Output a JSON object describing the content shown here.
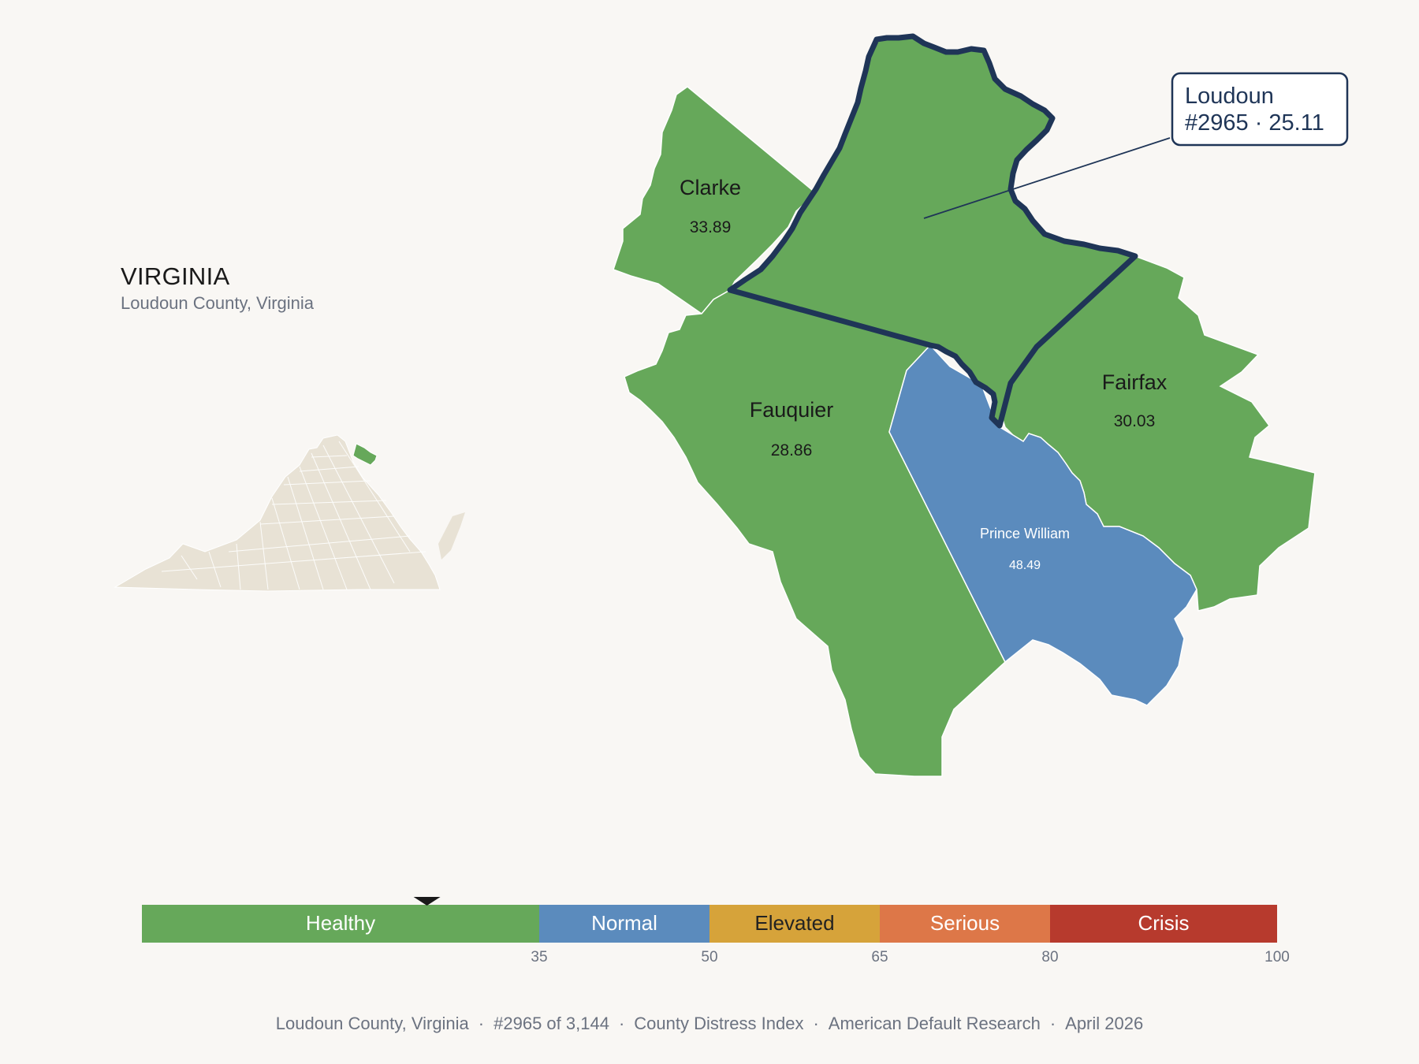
{
  "header": {
    "state_name": "VIRGINIA",
    "subtitle": "Loudoun County, Virginia"
  },
  "colors": {
    "background": "#f9f7f4",
    "healthy": "#66a85a",
    "normal": "#5b8bbd",
    "elevated": "#d6a33a",
    "serious": "#dd7748",
    "crisis": "#b73a2d",
    "highlight_border": "#1f3557",
    "state_base": "#e8e2d5"
  },
  "map": {
    "focus_county": {
      "name": "Loudoun",
      "rank_label": "#2965 · 25.11",
      "score": 25.11,
      "category": "Healthy"
    },
    "neighbors": [
      {
        "name": "Clarke",
        "value": "33.89",
        "category": "Healthy"
      },
      {
        "name": "Fauquier",
        "value": "28.86",
        "category": "Healthy"
      },
      {
        "name": "Fairfax",
        "value": "30.03",
        "category": "Healthy"
      },
      {
        "name": "Prince William",
        "value": "48.49",
        "category": "Normal"
      }
    ]
  },
  "legend": {
    "segments": [
      {
        "label": "Healthy",
        "from": 0,
        "to": 35,
        "color": "#66a85a",
        "text_color": "#ffffff"
      },
      {
        "label": "Normal",
        "from": 35,
        "to": 50,
        "color": "#5b8bbd",
        "text_color": "#ffffff"
      },
      {
        "label": "Elevated",
        "from": 50,
        "to": 65,
        "color": "#d6a33a",
        "text_color": "#222222"
      },
      {
        "label": "Serious",
        "from": 65,
        "to": 80,
        "color": "#dd7748",
        "text_color": "#ffffff"
      },
      {
        "label": "Crisis",
        "from": 80,
        "to": 100,
        "color": "#b73a2d",
        "text_color": "#ffffff"
      }
    ],
    "ticks": [
      "35",
      "50",
      "65",
      "80",
      "100"
    ],
    "marker_value": 25.11
  },
  "footer": {
    "county": "Loudoun County, Virginia",
    "rank": "#2965 of 3,144",
    "index": "County Distress Index",
    "source": "American Default Research",
    "date": "April 2026"
  }
}
